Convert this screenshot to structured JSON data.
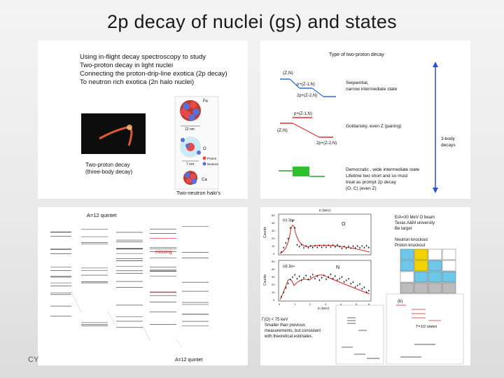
{
  "slide": {
    "title": "2p decay of nuclei (gs) and states",
    "footer": "CY"
  },
  "panel_top_left": {
    "headline": [
      "Using in-flight decay spectroscopy to study",
      "Two-proton decay in light nuclei",
      "Connecting the proton-drip-line exotica (2p decay)",
      "To neutron rich exotica (2n halo nuclei)"
    ],
    "caption": [
      "Two-proton decay",
      "(three-body decay)"
    ],
    "nucleus_labels": {
      "top": "Fe",
      "mid": "O",
      "bottom": "Ca"
    },
    "size_labels": {
      "top": "12 nm",
      "mid": "7 nm"
    },
    "legend": {
      "proton": "Proton",
      "neutron": "Neutron"
    },
    "halo_caption": "Two-neutron halo's"
  },
  "panel_top_right": {
    "title": "Type of two-proton decay",
    "sequential": {
      "start": "(Z,N)",
      "mid": "p+(Z-1,N)",
      "end": "2p+(Z-2,N)",
      "desc": [
        "Sequential,",
        "narrow intermediate state"
      ]
    },
    "goldansky": {
      "mid": "p+(Z-1,N)",
      "start": "(Z,N)",
      "end": "2p+(Z-2,N)",
      "desc": "Goldansky, even Z (pairing)"
    },
    "democratic": {
      "desc": [
        "Democratic , wide intermediate state",
        "Lifetime two short and so must",
        "treat as prompt 2p decay",
        "(O, C) (even Z)"
      ]
    },
    "side_label": [
      "3-body",
      "decays"
    ]
  },
  "panel_bottom_left": {
    "top_label": "A=12 quintet",
    "missing_label": "missing",
    "bottom_label": "A=12 quintet"
  },
  "panel_bottom_right": {
    "axis_top": "E (MeV)",
    "plot_c": {
      "label": "(c) 2p+",
      "nucleus": "O",
      "ylabel": "Counts",
      "yticks": [
        "50",
        "40",
        "30",
        "20",
        "10",
        "0"
      ]
    },
    "plot_d": {
      "label": "(d) 2p+",
      "nucleus": "N",
      "ylabel": "Counts",
      "yticks": [
        "50",
        "40",
        "30",
        "20",
        "10",
        "0"
      ]
    },
    "xlabel": "E (MeV)",
    "xticks": [
      "0",
      "1",
      "2",
      "3",
      "4",
      "5",
      "6"
    ],
    "info": [
      "E/A=30 MeV O beam",
      "Texas A&M university",
      "Be target"
    ],
    "knockout": [
      "Neutron knockout",
      "Proton knockout"
    ],
    "width_note": [
      "Γ(O) < 75 keV",
      "Smaller than previous",
      "measurements, but consistent",
      "with theoretical estimates."
    ],
    "level_b_label": "(b)",
    "level_states": "T=1/2 states"
  }
}
